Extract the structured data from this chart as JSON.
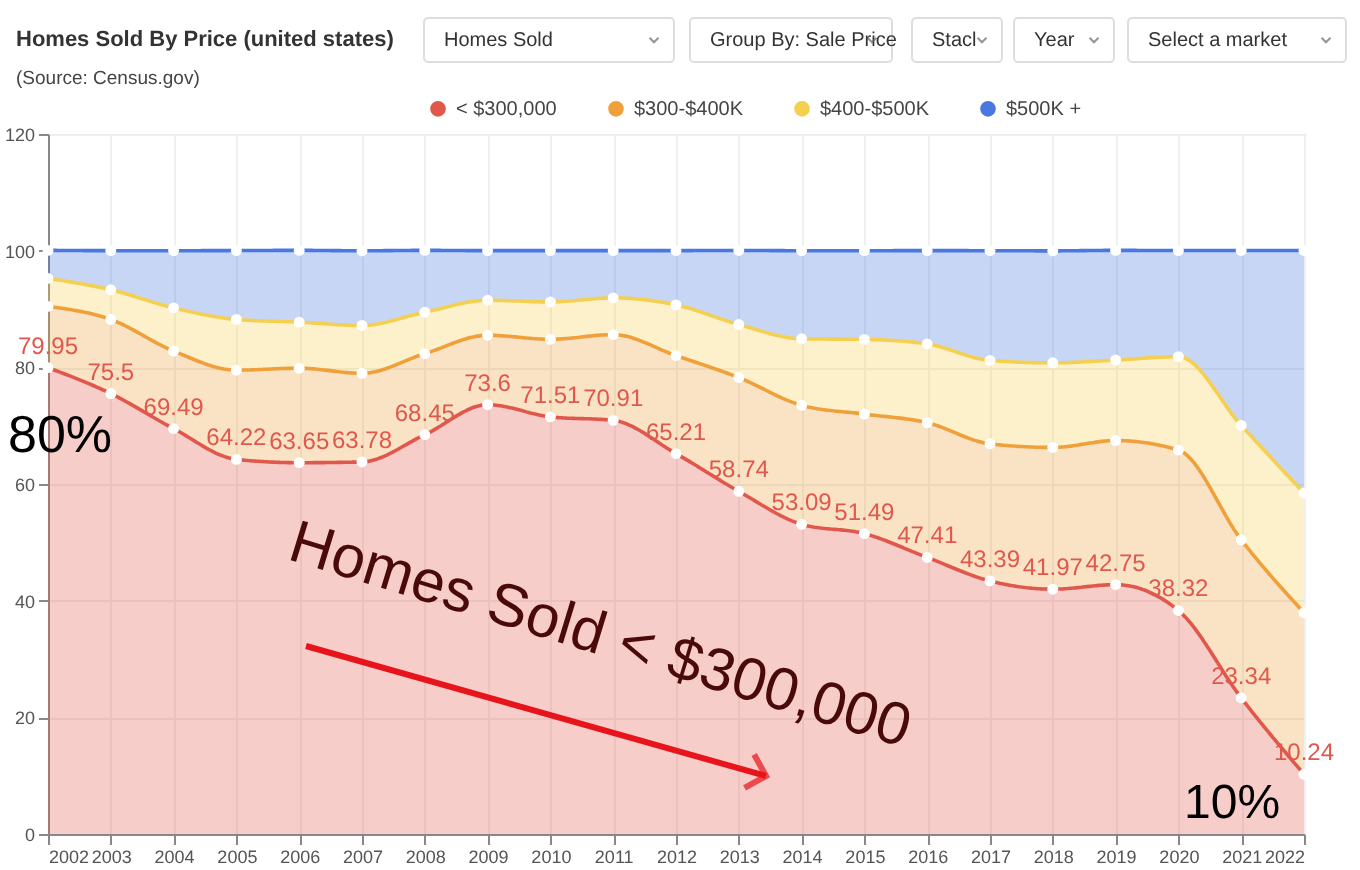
{
  "chart_data": {
    "type": "area",
    "stacked": true,
    "title": "Homes Sold By Price (united states)",
    "subtitle": "(Source: Census.gov)",
    "categories": [
      "2002",
      "2003",
      "2004",
      "2005",
      "2006",
      "2007",
      "2008",
      "2009",
      "2010",
      "2011",
      "2012",
      "2013",
      "2014",
      "2015",
      "2016",
      "2017",
      "2018",
      "2019",
      "2020",
      "2021",
      "2022"
    ],
    "series": [
      {
        "name": "< $300,000",
        "color": "#e0584c",
        "values": [
          79.95,
          75.5,
          69.49,
          64.22,
          63.65,
          63.78,
          68.45,
          73.6,
          71.51,
          70.91,
          65.21,
          58.74,
          53.09,
          51.49,
          47.41,
          43.39,
          41.97,
          42.75,
          38.32,
          23.34,
          10.24
        ],
        "value_labels": [
          "79.95",
          "75.5",
          "69.49",
          "64.22",
          "63.65",
          "63.78",
          "68.45",
          "73.6",
          "71.51",
          "70.91",
          "65.21",
          "58.74",
          "53.09",
          "51.49",
          "47.41",
          "43.39",
          "41.97",
          "42.75",
          "38.32",
          "23.34",
          "10.24"
        ]
      },
      {
        "name": "$300-$400K",
        "color": "#f0a03a",
        "values": [
          10.5,
          12.7,
          13.3,
          15.3,
          16.2,
          15.2,
          13.9,
          11.9,
          13.3,
          14.7,
          16.8,
          19.5,
          20.4,
          20.5,
          23.1,
          23.5,
          24.3,
          24.7,
          27.5,
          27.1,
          27.7
        ]
      },
      {
        "name": "$400-$500K",
        "color": "#f5cf50",
        "values": [
          4.8,
          5.1,
          7.4,
          8.7,
          7.9,
          8.2,
          7.1,
          6.0,
          6.4,
          6.3,
          8.7,
          9.1,
          11.4,
          12.8,
          13.5,
          14.3,
          14.5,
          13.8,
          16.0,
          19.6,
          20.5
        ]
      },
      {
        "name": "$500K +",
        "color": "#4a78e0",
        "values": [
          4.8,
          6.7,
          9.8,
          11.8,
          12.3,
          12.8,
          10.6,
          8.5,
          8.8,
          8.1,
          9.3,
          12.7,
          15.1,
          15.2,
          16.0,
          18.8,
          19.2,
          18.8,
          18.2,
          30.0,
          41.6
        ]
      }
    ],
    "ylim": [
      0,
      120
    ],
    "yticks": [
      0,
      20,
      40,
      60,
      80,
      100,
      120
    ],
    "grid": true,
    "legend": "top",
    "marker": "circle",
    "line_style": "solid",
    "annotations": [
      "Homes Sold",
      "Group By: Sale Price",
      "Stacl",
      "Year",
      "Select a market",
      "80%",
      "Homes Sold < $300,000",
      "10%"
    ]
  }
}
